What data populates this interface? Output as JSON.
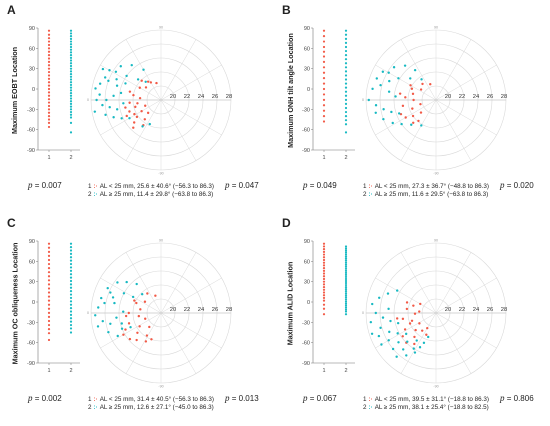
{
  "colors": {
    "group1": "#f25a47",
    "group2": "#17b9c2",
    "grid": "#d9d9d9",
    "axis": "#777777"
  },
  "chart_data": [
    {
      "type": "scatter",
      "panel": "A",
      "ylabel": "Maximum EOBT Location",
      "strip": {
        "categories": [
          "1",
          "2"
        ],
        "yticks": [
          "90",
          "60",
          "30",
          "0",
          "-30",
          "-60",
          "-90"
        ],
        "ylim": [
          -90,
          90
        ],
        "group1": [
          86,
          80,
          75,
          70,
          65,
          60,
          55,
          50,
          45,
          40,
          35,
          30,
          25,
          20,
          15,
          10,
          5,
          0,
          -5,
          -10,
          -15,
          -20,
          -25,
          -30,
          -35,
          -40,
          -45,
          -50,
          -56
        ],
        "group2": [
          86,
          82,
          78,
          74,
          70,
          66,
          62,
          58,
          54,
          50,
          46,
          42,
          38,
          34,
          30,
          26,
          22,
          18,
          14,
          10,
          6,
          2,
          -2,
          -6,
          -10,
          -14,
          -18,
          -22,
          -26,
          -30,
          -34,
          -38,
          -42,
          -50,
          -64
        ]
      },
      "pvalue_strip": "= 0.007",
      "polar": {
        "rticks": [
          "20",
          "22",
          "24",
          "26",
          "28"
        ],
        "angle_ticks": [
          "90",
          "0",
          "-90"
        ],
        "rlim": [
          18,
          28
        ],
        "group1": [
          [
            20.5,
            75
          ],
          [
            21.2,
            55
          ],
          [
            20.8,
            40
          ],
          [
            21.5,
            30
          ],
          [
            22.0,
            10
          ],
          [
            21.0,
            5
          ],
          [
            22.5,
            -5
          ],
          [
            21.8,
            -15
          ],
          [
            22.8,
            -20
          ],
          [
            23.4,
            -25
          ],
          [
            21.2,
            -30
          ],
          [
            22.2,
            -35
          ],
          [
            23.0,
            -40
          ],
          [
            20.6,
            -45
          ],
          [
            21.6,
            -50
          ],
          [
            22.4,
            -55
          ],
          [
            23.6,
            -45
          ],
          [
            20.4,
            -20
          ],
          [
            21.4,
            -8
          ],
          [
            22.6,
            15
          ],
          [
            20.9,
            60
          ],
          [
            21.9,
            45
          ],
          [
            23.2,
            -12
          ],
          [
            22.3,
            -28
          ]
        ],
        "group2": [
          [
            23.0,
            60
          ],
          [
            24.5,
            50
          ],
          [
            25.5,
            40
          ],
          [
            26.5,
            30
          ],
          [
            24.0,
            35
          ],
          [
            25.0,
            25
          ],
          [
            26.0,
            20
          ],
          [
            27.0,
            15
          ],
          [
            27.5,
            10
          ],
          [
            26.8,
            5
          ],
          [
            25.8,
            0
          ],
          [
            24.8,
            5
          ],
          [
            23.8,
            10
          ],
          [
            27.2,
            0
          ],
          [
            26.4,
            -5
          ],
          [
            25.4,
            -8
          ],
          [
            24.4,
            -12
          ],
          [
            23.4,
            -5
          ],
          [
            27.6,
            -10
          ],
          [
            26.2,
            -15
          ],
          [
            25.2,
            -20
          ],
          [
            24.2,
            -25
          ],
          [
            23.2,
            -30
          ],
          [
            22.6,
            -55
          ],
          [
            21.8,
            -65
          ],
          [
            26.6,
            22
          ],
          [
            25.6,
            32
          ],
          [
            24.6,
            18
          ],
          [
            23.6,
            25
          ],
          [
            27.4,
            28
          ],
          [
            22.4,
            42
          ],
          [
            21.4,
            50
          ]
        ]
      },
      "pvalue_polar": "= 0.047",
      "legend": [
        {
          "id": "1",
          "text": "AL < 25 mm, 25.6 ± 40.6° (−56.3 to 86.3)"
        },
        {
          "id": "2",
          "text": "AL ≥ 25 mm, 11.4 ± 29.8° (−63.8 to 86.3)"
        }
      ]
    },
    {
      "type": "scatter",
      "panel": "B",
      "ylabel": "Maximum ONH tilt angle Location",
      "strip": {
        "categories": [
          "1",
          "2"
        ],
        "yticks": [
          "90",
          "60",
          "30",
          "0",
          "-30",
          "-60",
          "-90"
        ],
        "ylim": [
          -90,
          90
        ],
        "group1": [
          86,
          78,
          70,
          62,
          55,
          48,
          40,
          32,
          24,
          16,
          8,
          0,
          -8,
          -16,
          -24,
          -32,
          -40,
          -48
        ],
        "group2": [
          86,
          80,
          74,
          68,
          62,
          56,
          50,
          44,
          38,
          32,
          26,
          20,
          14,
          8,
          2,
          -4,
          -10,
          -16,
          -22,
          -28,
          -34,
          -40,
          -46,
          -52,
          -64
        ]
      },
      "pvalue_strip": "= 0.049",
      "polar": {
        "rticks": [
          "20",
          "22",
          "24",
          "26",
          "28"
        ],
        "angle_ticks": [
          "90",
          "0",
          "-90"
        ],
        "rlim": [
          18,
          28
        ],
        "group1": [
          [
            20.4,
            70
          ],
          [
            21.0,
            50
          ],
          [
            20.6,
            35
          ],
          [
            21.8,
            25
          ],
          [
            22.4,
            5
          ],
          [
            21.2,
            0
          ],
          [
            22.8,
            -10
          ],
          [
            21.6,
            -20
          ],
          [
            23.0,
            -30
          ],
          [
            20.8,
            -40
          ],
          [
            21.9,
            -50
          ],
          [
            22.6,
            -45
          ],
          [
            23.4,
            -22
          ],
          [
            20.3,
            -15
          ],
          [
            21.4,
            15
          ],
          [
            22.2,
            30
          ],
          [
            23.2,
            10
          ],
          [
            22.0,
            -35
          ]
        ],
        "group2": [
          [
            23.2,
            55
          ],
          [
            24.6,
            48
          ],
          [
            25.6,
            38
          ],
          [
            26.6,
            28
          ],
          [
            24.2,
            30
          ],
          [
            25.2,
            22
          ],
          [
            26.2,
            15
          ],
          [
            27.2,
            10
          ],
          [
            27.6,
            0
          ],
          [
            26.6,
            -5
          ],
          [
            25.6,
            -10
          ],
          [
            24.6,
            -15
          ],
          [
            23.6,
            -20
          ],
          [
            26.0,
            -20
          ],
          [
            25.0,
            -28
          ],
          [
            24.0,
            -35
          ],
          [
            23.0,
            -45
          ],
          [
            22.2,
            -60
          ],
          [
            27.0,
            20
          ],
          [
            25.8,
            30
          ],
          [
            24.8,
            10
          ],
          [
            23.8,
            5
          ],
          [
            22.8,
            40
          ],
          [
            21.6,
            55
          ],
          [
            26.8,
            -12
          ]
        ]
      },
      "pvalue_polar": "= 0.020",
      "legend": [
        {
          "id": "1",
          "text": "AL < 25 mm, 27.3 ± 36.7° (−48.8 to 86.3)"
        },
        {
          "id": "2",
          "text": "AL ≥ 25 mm, 11.6 ± 29.5° (−63.8 to 86.3)"
        }
      ]
    },
    {
      "type": "scatter",
      "panel": "C",
      "ylabel": "Maximum OC obliqueness Location",
      "strip": {
        "categories": [
          "1",
          "2"
        ],
        "yticks": [
          "90",
          "60",
          "30",
          "0",
          "-30",
          "-60",
          "-90"
        ],
        "ylim": [
          -90,
          90
        ],
        "group1": [
          86,
          80,
          74,
          68,
          62,
          56,
          50,
          44,
          38,
          32,
          26,
          20,
          14,
          8,
          2,
          -4,
          -10,
          -16,
          -22,
          -28,
          -34,
          -40,
          -46,
          -56
        ],
        "group2": [
          86,
          81,
          76,
          71,
          66,
          61,
          56,
          51,
          46,
          41,
          36,
          31,
          26,
          21,
          16,
          11,
          6,
          1,
          -4,
          -9,
          -14,
          -19,
          -24,
          -29,
          -34,
          -39,
          -45
        ]
      },
      "pvalue_strip": "= 0.002",
      "polar": {
        "rticks": [
          "20",
          "22",
          "24",
          "26",
          "28"
        ],
        "angle_ticks": [
          "90",
          "0",
          "-90"
        ],
        "rlim": [
          18,
          28
        ],
        "group1": [
          [
            20.6,
            72
          ],
          [
            21.4,
            55
          ],
          [
            20.8,
            35
          ],
          [
            21.8,
            22
          ],
          [
            22.6,
            0
          ],
          [
            21.2,
            -8
          ],
          [
            22.8,
            -18
          ],
          [
            23.6,
            -25
          ],
          [
            21.6,
            -32
          ],
          [
            22.4,
            -40
          ],
          [
            23.2,
            -48
          ],
          [
            20.6,
            -50
          ],
          [
            21.8,
            -58
          ],
          [
            22.6,
            -62
          ],
          [
            23.8,
            -40
          ],
          [
            20.4,
            -20
          ],
          [
            21.0,
            10
          ],
          [
            22.2,
            25
          ],
          [
            23.0,
            -5
          ],
          [
            24.2,
            -30
          ],
          [
            22.0,
            -70
          ]
        ],
        "group2": [
          [
            23.4,
            50
          ],
          [
            24.6,
            42
          ],
          [
            25.6,
            35
          ],
          [
            26.4,
            25
          ],
          [
            24.0,
            28
          ],
          [
            25.2,
            18
          ],
          [
            26.2,
            10
          ],
          [
            27.0,
            5
          ],
          [
            27.4,
            -2
          ],
          [
            26.4,
            -8
          ],
          [
            25.4,
            -12
          ],
          [
            24.4,
            -6
          ],
          [
            23.4,
            2
          ],
          [
            26.8,
            14
          ],
          [
            25.8,
            22
          ],
          [
            24.8,
            12
          ],
          [
            23.8,
            -15
          ],
          [
            22.8,
            -25
          ],
          [
            27.2,
            -12
          ],
          [
            26.0,
            -20
          ],
          [
            25.0,
            -28
          ],
          [
            24.0,
            -22
          ],
          [
            22.6,
            30
          ],
          [
            21.8,
            45
          ]
        ]
      },
      "pvalue_polar": "= 0.013",
      "legend": [
        {
          "id": "1",
          "text": "AL < 25 mm, 31.4 ± 40.5° (−56.3 to 86.3)"
        },
        {
          "id": "2",
          "text": "AL ≥ 25 mm, 12.6 ± 27.1° (−45.0 to 86.3)"
        }
      ]
    },
    {
      "type": "scatter",
      "panel": "D",
      "ylabel": "Maximum ALID Location",
      "strip": {
        "categories": [
          "1",
          "2"
        ],
        "yticks": [
          "90",
          "60",
          "30",
          "0",
          "-30",
          "-60",
          "-90"
        ],
        "ylim": [
          -90,
          90
        ],
        "group1": [
          86,
          82,
          78,
          74,
          70,
          66,
          62,
          58,
          54,
          50,
          46,
          42,
          38,
          34,
          30,
          26,
          22,
          18,
          14,
          10,
          6,
          2,
          -4,
          -10,
          -18
        ],
        "group2": [
          82,
          79,
          76,
          73,
          70,
          67,
          64,
          61,
          58,
          55,
          52,
          49,
          46,
          43,
          40,
          37,
          34,
          31,
          28,
          25,
          22,
          19,
          16,
          13,
          10,
          7,
          4,
          1,
          -2,
          -5,
          -8,
          -11,
          -14,
          -18
        ]
      },
      "pvalue_strip": "= 0.067",
      "polar": {
        "rticks": [
          "20",
          "22",
          "24",
          "26",
          "28"
        ],
        "angle_ticks": [
          "90",
          "0",
          "-90"
        ],
        "rlim": [
          18,
          28
        ],
        "group1": [
          [
            20.6,
            30
          ],
          [
            21.4,
            18
          ],
          [
            22.2,
            8
          ],
          [
            21.0,
            -2
          ],
          [
            22.8,
            -10
          ],
          [
            21.6,
            -18
          ],
          [
            23.0,
            -28
          ],
          [
            20.8,
            -32
          ],
          [
            21.8,
            -40
          ],
          [
            22.6,
            -48
          ],
          [
            23.4,
            -55
          ],
          [
            20.5,
            -60
          ],
          [
            21.4,
            -66
          ],
          [
            24.0,
            -45
          ],
          [
            22.0,
            -22
          ],
          [
            23.6,
            -8
          ],
          [
            20.4,
            5
          ],
          [
            22.4,
            20
          ],
          [
            21.2,
            -52
          ],
          [
            23.8,
            -35
          ]
        ],
        "group2": [
          [
            24.4,
            30
          ],
          [
            25.4,
            22
          ],
          [
            26.4,
            15
          ],
          [
            27.2,
            8
          ],
          [
            26.6,
            0
          ],
          [
            25.6,
            -5
          ],
          [
            24.6,
            -10
          ],
          [
            23.6,
            -15
          ],
          [
            27.4,
            -8
          ],
          [
            26.2,
            -15
          ],
          [
            25.2,
            -22
          ],
          [
            24.2,
            -28
          ],
          [
            23.2,
            -35
          ],
          [
            26.8,
            -22
          ],
          [
            25.8,
            -30
          ],
          [
            24.8,
            -38
          ],
          [
            23.8,
            -45
          ],
          [
            22.8,
            -55
          ],
          [
            26.0,
            -40
          ],
          [
            25.0,
            -48
          ],
          [
            24.0,
            -58
          ],
          [
            22.6,
            -68
          ],
          [
            27.0,
            -30
          ],
          [
            25.4,
            -55
          ],
          [
            24.4,
            -62
          ],
          [
            23.4,
            -65
          ],
          [
            21.6,
            -72
          ],
          [
            26.4,
            -48
          ],
          [
            27.6,
            -18
          ],
          [
            24.8,
            5
          ]
        ]
      },
      "pvalue_polar": "= 0.806",
      "legend": [
        {
          "id": "1",
          "text": "AL < 25 mm, 39.5 ± 31.1° (−18.8 to 86.3)"
        },
        {
          "id": "2",
          "text": "AL ≥ 25 mm, 38.1 ± 25.4° (−18.8 to 82.5)"
        }
      ]
    }
  ]
}
